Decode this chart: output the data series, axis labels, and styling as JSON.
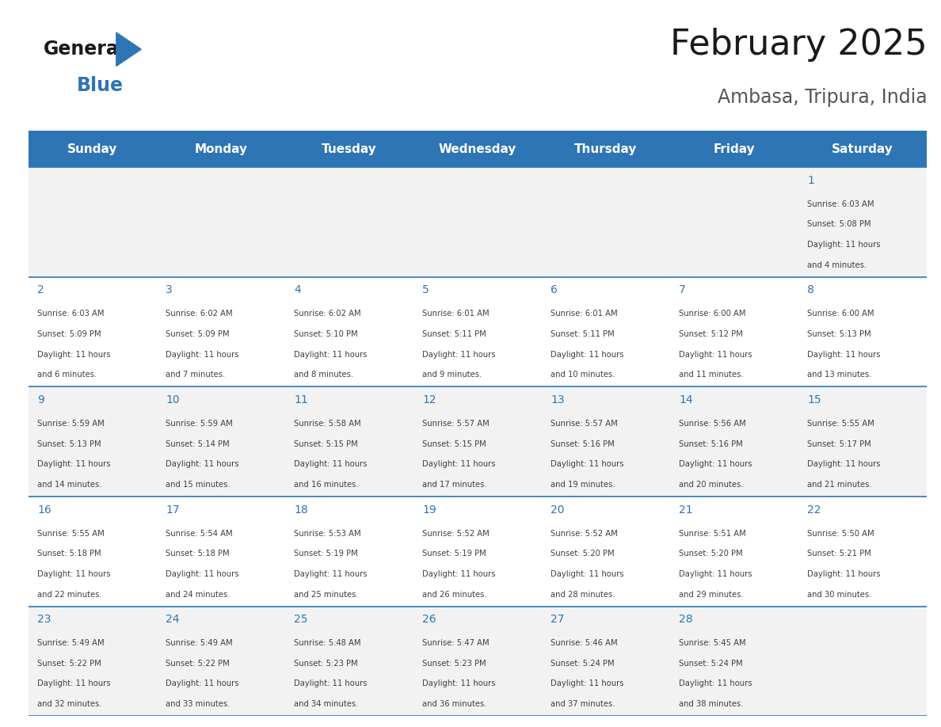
{
  "title": "February 2025",
  "subtitle": "Ambasa, Tripura, India",
  "days_of_week": [
    "Sunday",
    "Monday",
    "Tuesday",
    "Wednesday",
    "Thursday",
    "Friday",
    "Saturday"
  ],
  "header_bg": "#2E75B6",
  "header_text_color": "#FFFFFF",
  "row_bg_odd": "#F2F2F2",
  "row_bg_even": "#FFFFFF",
  "cell_border_color": "#2E75B6",
  "day_number_color": "#2E75B6",
  "info_text_color": "#404040",
  "logo_blue": "#2E75B6",
  "logo_dark": "#1A1A1A",
  "calendar_data": [
    {
      "day": 1,
      "col": 6,
      "row": 0,
      "sunrise": "6:03 AM",
      "sunset": "5:08 PM",
      "daylight": "11 hours and 4 minutes."
    },
    {
      "day": 2,
      "col": 0,
      "row": 1,
      "sunrise": "6:03 AM",
      "sunset": "5:09 PM",
      "daylight": "11 hours and 6 minutes."
    },
    {
      "day": 3,
      "col": 1,
      "row": 1,
      "sunrise": "6:02 AM",
      "sunset": "5:09 PM",
      "daylight": "11 hours and 7 minutes."
    },
    {
      "day": 4,
      "col": 2,
      "row": 1,
      "sunrise": "6:02 AM",
      "sunset": "5:10 PM",
      "daylight": "11 hours and 8 minutes."
    },
    {
      "day": 5,
      "col": 3,
      "row": 1,
      "sunrise": "6:01 AM",
      "sunset": "5:11 PM",
      "daylight": "11 hours and 9 minutes."
    },
    {
      "day": 6,
      "col": 4,
      "row": 1,
      "sunrise": "6:01 AM",
      "sunset": "5:11 PM",
      "daylight": "11 hours and 10 minutes."
    },
    {
      "day": 7,
      "col": 5,
      "row": 1,
      "sunrise": "6:00 AM",
      "sunset": "5:12 PM",
      "daylight": "11 hours and 11 minutes."
    },
    {
      "day": 8,
      "col": 6,
      "row": 1,
      "sunrise": "6:00 AM",
      "sunset": "5:13 PM",
      "daylight": "11 hours and 13 minutes."
    },
    {
      "day": 9,
      "col": 0,
      "row": 2,
      "sunrise": "5:59 AM",
      "sunset": "5:13 PM",
      "daylight": "11 hours and 14 minutes."
    },
    {
      "day": 10,
      "col": 1,
      "row": 2,
      "sunrise": "5:59 AM",
      "sunset": "5:14 PM",
      "daylight": "11 hours and 15 minutes."
    },
    {
      "day": 11,
      "col": 2,
      "row": 2,
      "sunrise": "5:58 AM",
      "sunset": "5:15 PM",
      "daylight": "11 hours and 16 minutes."
    },
    {
      "day": 12,
      "col": 3,
      "row": 2,
      "sunrise": "5:57 AM",
      "sunset": "5:15 PM",
      "daylight": "11 hours and 17 minutes."
    },
    {
      "day": 13,
      "col": 4,
      "row": 2,
      "sunrise": "5:57 AM",
      "sunset": "5:16 PM",
      "daylight": "11 hours and 19 minutes."
    },
    {
      "day": 14,
      "col": 5,
      "row": 2,
      "sunrise": "5:56 AM",
      "sunset": "5:16 PM",
      "daylight": "11 hours and 20 minutes."
    },
    {
      "day": 15,
      "col": 6,
      "row": 2,
      "sunrise": "5:55 AM",
      "sunset": "5:17 PM",
      "daylight": "11 hours and 21 minutes."
    },
    {
      "day": 16,
      "col": 0,
      "row": 3,
      "sunrise": "5:55 AM",
      "sunset": "5:18 PM",
      "daylight": "11 hours and 22 minutes."
    },
    {
      "day": 17,
      "col": 1,
      "row": 3,
      "sunrise": "5:54 AM",
      "sunset": "5:18 PM",
      "daylight": "11 hours and 24 minutes."
    },
    {
      "day": 18,
      "col": 2,
      "row": 3,
      "sunrise": "5:53 AM",
      "sunset": "5:19 PM",
      "daylight": "11 hours and 25 minutes."
    },
    {
      "day": 19,
      "col": 3,
      "row": 3,
      "sunrise": "5:52 AM",
      "sunset": "5:19 PM",
      "daylight": "11 hours and 26 minutes."
    },
    {
      "day": 20,
      "col": 4,
      "row": 3,
      "sunrise": "5:52 AM",
      "sunset": "5:20 PM",
      "daylight": "11 hours and 28 minutes."
    },
    {
      "day": 21,
      "col": 5,
      "row": 3,
      "sunrise": "5:51 AM",
      "sunset": "5:20 PM",
      "daylight": "11 hours and 29 minutes."
    },
    {
      "day": 22,
      "col": 6,
      "row": 3,
      "sunrise": "5:50 AM",
      "sunset": "5:21 PM",
      "daylight": "11 hours and 30 minutes."
    },
    {
      "day": 23,
      "col": 0,
      "row": 4,
      "sunrise": "5:49 AM",
      "sunset": "5:22 PM",
      "daylight": "11 hours and 32 minutes."
    },
    {
      "day": 24,
      "col": 1,
      "row": 4,
      "sunrise": "5:49 AM",
      "sunset": "5:22 PM",
      "daylight": "11 hours and 33 minutes."
    },
    {
      "day": 25,
      "col": 2,
      "row": 4,
      "sunrise": "5:48 AM",
      "sunset": "5:23 PM",
      "daylight": "11 hours and 34 minutes."
    },
    {
      "day": 26,
      "col": 3,
      "row": 4,
      "sunrise": "5:47 AM",
      "sunset": "5:23 PM",
      "daylight": "11 hours and 36 minutes."
    },
    {
      "day": 27,
      "col": 4,
      "row": 4,
      "sunrise": "5:46 AM",
      "sunset": "5:24 PM",
      "daylight": "11 hours and 37 minutes."
    },
    {
      "day": 28,
      "col": 5,
      "row": 4,
      "sunrise": "5:45 AM",
      "sunset": "5:24 PM",
      "daylight": "11 hours and 38 minutes."
    }
  ],
  "num_rows": 5,
  "num_cols": 7,
  "fig_width": 11.88,
  "fig_height": 9.18
}
